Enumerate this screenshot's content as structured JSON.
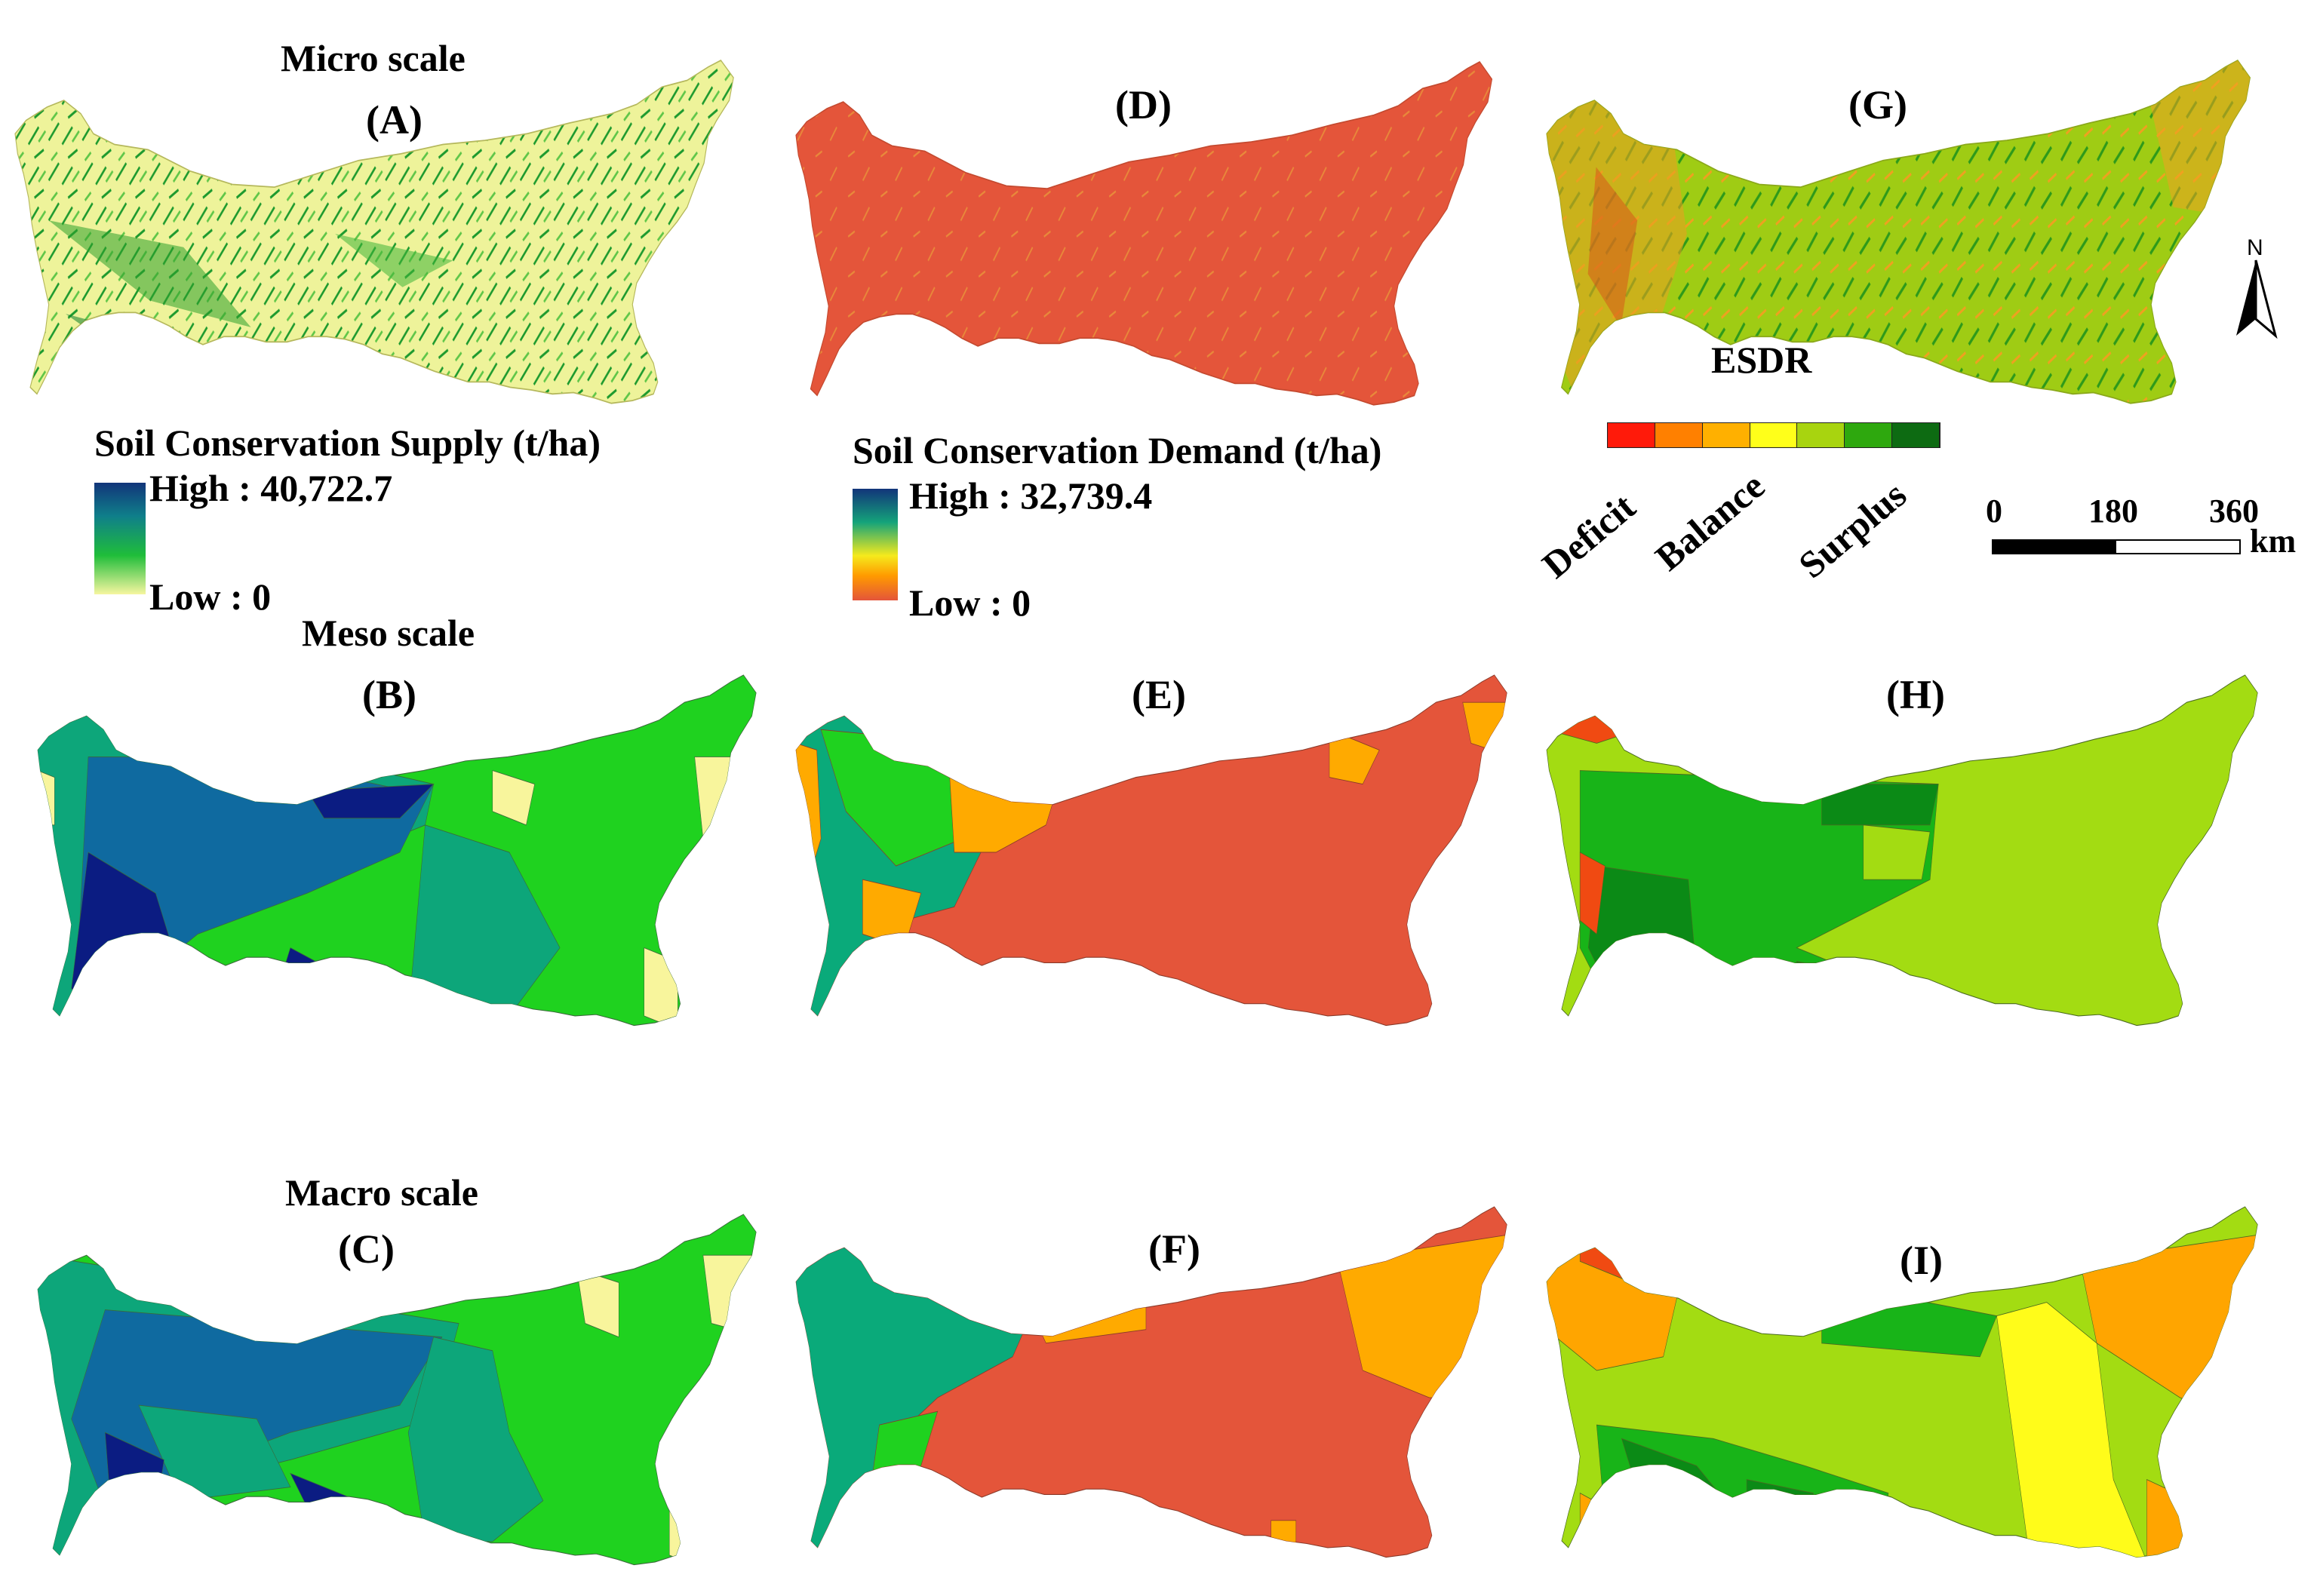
{
  "scales": {
    "micro": "Micro scale",
    "meso": "Meso scale",
    "macro": "Macro scale"
  },
  "panels": {
    "A": "(A)",
    "B": "(B)",
    "C": "(C)",
    "D": "(D)",
    "E": "(E)",
    "F": "(F)",
    "G": "(G)",
    "H": "(H)",
    "I": "(I)"
  },
  "supply_legend": {
    "title": "Soil Conservation Supply (t/ha)",
    "high": "High : 40,722.7",
    "low": "Low : 0",
    "colors": [
      "#12357a",
      "#0f7f8a",
      "#1fbd3a",
      "#f6f6a0"
    ]
  },
  "demand_legend": {
    "title": "Soil Conservation Demand (t/ha)",
    "high": "High : 32,739.4",
    "low": "Low : 0",
    "colors": [
      "#12357a",
      "#14a37a",
      "#f5ea1c",
      "#ff9a00",
      "#e4553a"
    ]
  },
  "esdr_legend": {
    "title": "ESDR",
    "classes": [
      "#ff1a0a",
      "#ff8000",
      "#ffb000",
      "#ffff1a",
      "#a8d40f",
      "#2ea80e",
      "#0d6b12"
    ],
    "deficit": "Deficit",
    "balance": "Balance",
    "surplus": "Surplus"
  },
  "north_arrow": "N",
  "scale_bar": {
    "ticks": [
      "0",
      "180",
      "360"
    ],
    "unit": "km"
  },
  "colors": {
    "micro_supply_base": "#f1f59a",
    "demand_base": "#e4553a",
    "esdr_micro_base": "#a8d00f",
    "supply_dark": "#0b1c82",
    "supply_blue": "#0f6aa0",
    "supply_teal": "#0da67a",
    "supply_green": "#1fd21f",
    "supply_pale": "#f8f59c",
    "demand_orange": "#ffaa00",
    "demand_teal": "#0aaa7a",
    "esdr_lightgreen": "#a3dc12",
    "esdr_green": "#18b418",
    "esdr_darkgreen": "#0b8a16",
    "esdr_yellow": "#fffc1a",
    "esdr_orange": "#ffa500",
    "esdr_red": "#f04a12"
  }
}
